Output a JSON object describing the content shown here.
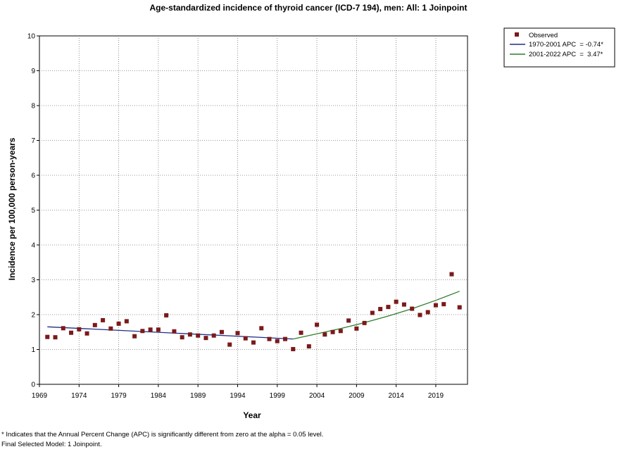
{
  "chart_data": {
    "type": "scatter",
    "title": "Age-standardized incidence of thyroid cancer (ICD-7 194), men: All: 1 Joinpoint",
    "xlabel": "Year",
    "ylabel": "Incidence per 100,000 person-years",
    "xlim": [
      1969,
      2023
    ],
    "ylim": [
      0,
      10
    ],
    "x_ticks": [
      1969,
      1974,
      1979,
      1984,
      1989,
      1994,
      1999,
      2004,
      2009,
      2014,
      2019
    ],
    "y_ticks": [
      0,
      1,
      2,
      3,
      4,
      5,
      6,
      7,
      8,
      9,
      10
    ],
    "grid": true,
    "legend_position": "top-right",
    "series": [
      {
        "name": "Observed",
        "kind": "points",
        "color": "#7b1a1a",
        "x": [
          1970,
          1971,
          1972,
          1973,
          1974,
          1975,
          1976,
          1977,
          1978,
          1979,
          1980,
          1981,
          1982,
          1983,
          1984,
          1985,
          1986,
          1987,
          1988,
          1989,
          1990,
          1991,
          1992,
          1993,
          1994,
          1995,
          1996,
          1997,
          1998,
          1999,
          2000,
          2001,
          2002,
          2003,
          2004,
          2005,
          2006,
          2007,
          2008,
          2009,
          2010,
          2011,
          2012,
          2013,
          2014,
          2015,
          2016,
          2017,
          2018,
          2019,
          2020,
          2021,
          2022
        ],
        "y": [
          1.36,
          1.35,
          1.61,
          1.48,
          1.58,
          1.46,
          1.7,
          1.84,
          1.6,
          1.74,
          1.81,
          1.38,
          1.53,
          1.57,
          1.57,
          1.98,
          1.52,
          1.35,
          1.43,
          1.4,
          1.33,
          1.4,
          1.5,
          1.14,
          1.47,
          1.32,
          1.2,
          1.61,
          1.3,
          1.24,
          1.3,
          1.01,
          1.48,
          1.09,
          1.71,
          1.43,
          1.5,
          1.53,
          1.83,
          1.6,
          1.76,
          2.05,
          2.16,
          2.22,
          2.37,
          2.29,
          2.17,
          1.99,
          2.07,
          2.27,
          2.3,
          3.16,
          2.21
        ]
      },
      {
        "name": "1970-2001 APC  = -0.74*",
        "kind": "line",
        "color": "#1f2d8a",
        "x": [
          1970,
          2001
        ],
        "y": [
          1.65,
          1.3
        ]
      },
      {
        "name": "2001-2022 APC  =  3.47*",
        "kind": "line",
        "color": "#2e7d2e",
        "x": [
          2001,
          2004,
          2007,
          2010,
          2013,
          2016,
          2019,
          2022
        ],
        "y": [
          1.3,
          1.45,
          1.6,
          1.77,
          1.96,
          2.17,
          2.41,
          2.67
        ]
      }
    ]
  },
  "footnotes": {
    "line1": "* Indicates that the Annual Percent Change (APC) is significantly different from zero at the alpha = 0.05 level.",
    "line2": "Final Selected Model: 1 Joinpoint."
  }
}
